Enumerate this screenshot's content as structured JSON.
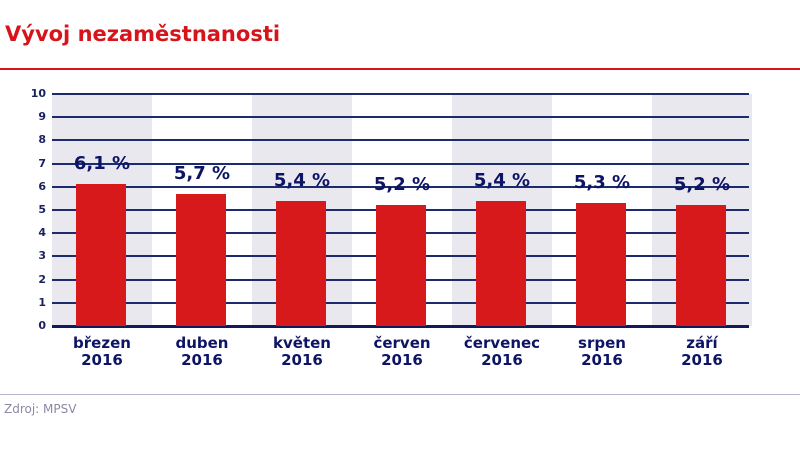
{
  "header": {
    "title": "Vývoj nezaměstnanosti"
  },
  "footer": {
    "source": "Zdroj: MPSV"
  },
  "colors": {
    "title": "#d7141a",
    "bar": "#d7191c",
    "text": "#0d1466",
    "band": "#e8e8ee",
    "grid": "#1e2a6e"
  },
  "chart_data": {
    "type": "bar",
    "title": "Vývoj nezaměstnanosti",
    "xlabel": "",
    "ylabel": "",
    "ylim": [
      0,
      10
    ],
    "yticks": [
      "0",
      "1",
      "2",
      "3",
      "4",
      "5",
      "6",
      "7",
      "8",
      "9",
      "10"
    ],
    "grid": true,
    "legend": null,
    "categories": [
      "březen 2016",
      "duben 2016",
      "květen 2016",
      "červen 2016",
      "červenec 2016",
      "srpen 2016",
      "září 2016"
    ],
    "category_lines": [
      [
        "březen",
        "2016"
      ],
      [
        "duben",
        "2016"
      ],
      [
        "květen",
        "2016"
      ],
      [
        "červen",
        "2016"
      ],
      [
        "červenec",
        "2016"
      ],
      [
        "srpen",
        "2016"
      ],
      [
        "září",
        "2016"
      ]
    ],
    "values": [
      6.1,
      5.7,
      5.4,
      5.2,
      5.4,
      5.3,
      5.2
    ],
    "value_labels": [
      "6,1 %",
      "5,7 %",
      "5,4 %",
      "5,2 %",
      "5,4 %",
      "5,3 %",
      "5,2 %"
    ],
    "source": "Zdroj: MPSV"
  }
}
